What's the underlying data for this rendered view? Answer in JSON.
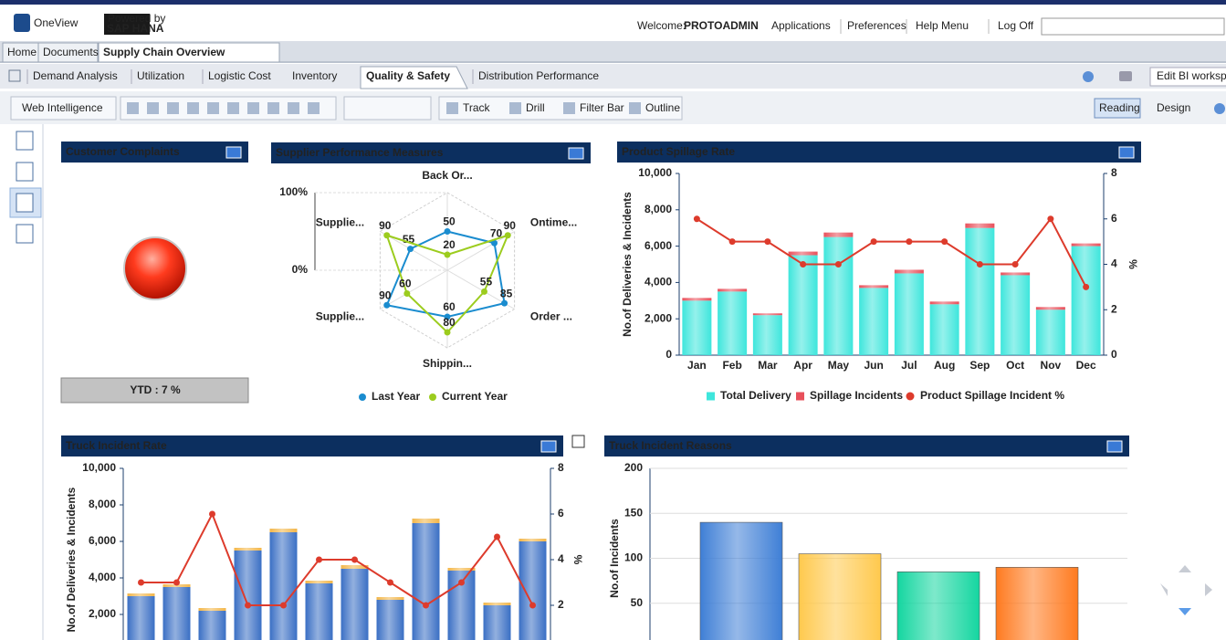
{
  "header": {
    "logo": "OneView",
    "powered_by": "Powered by",
    "sap": "SAP HANA",
    "welcome": "Welcome:",
    "user": "PROTOADMIN",
    "menu": [
      "Applications",
      "Preferences",
      "Help Menu",
      "Log Off"
    ]
  },
  "doc_tabs": [
    "Home",
    "Documents",
    "Supply Chain Overview"
  ],
  "report_tabs": [
    "Demand Analysis",
    "Utilization",
    "Logistic Cost",
    "Inventory",
    "Quality & Safety",
    "Distribution Performance"
  ],
  "edit_workspace": "Edit BI workspac",
  "toolbar": {
    "app": "Web Intelligence",
    "buttons": [
      "Track",
      "Drill",
      "Filter Bar",
      "Outline"
    ],
    "modes": [
      "Reading",
      "Design"
    ]
  },
  "complaints": {
    "title": "Customer Complaints",
    "ytd": "YTD : 7 %"
  },
  "chart_data": [
    {
      "type": "radar",
      "title": "Supplier Performance Measures",
      "categories": [
        "Back Or...",
        "Ontime...",
        "Order ...",
        "Shippin...",
        "Supplie...",
        "Supplie..."
      ],
      "series": [
        {
          "name": "Last Year",
          "color": "#1a8ccf",
          "values": [
            50,
            70,
            85,
            60,
            90,
            55
          ]
        },
        {
          "name": "Current Year",
          "color": "#9ccc1e",
          "values": [
            20,
            90,
            55,
            80,
            60,
            90
          ]
        }
      ],
      "ylim": [
        0,
        100
      ],
      "yticks": [
        {
          "value": 0,
          "label": "0%"
        },
        {
          "value": 100,
          "label": "100%"
        }
      ],
      "legend": "bottom"
    },
    {
      "type": "combo",
      "title": "Product Spillage Rate",
      "y_label": "No.of Deliveries & Incidents",
      "y2_label": "%",
      "categories": [
        "Jan",
        "Feb",
        "Mar",
        "Apr",
        "May",
        "Jun",
        "Jul",
        "Aug",
        "Sep",
        "Oct",
        "Nov",
        "Dec"
      ],
      "series": [
        {
          "name": "Total Delivery",
          "color": "#3ee6dc",
          "values": [
            3000,
            3500,
            2200,
            5500,
            6500,
            3700,
            4500,
            2800,
            7000,
            4400,
            2500,
            6000
          ]
        },
        {
          "name": "Spillage Incidents",
          "color": "#e8505b",
          "values": [
            150,
            150,
            100,
            200,
            250,
            150,
            200,
            150,
            250,
            150,
            150,
            150
          ]
        },
        {
          "name": "Product Spillage Incident %",
          "color": "#dd3b2c",
          "axis": "y2",
          "values": [
            6,
            5,
            5,
            4,
            4,
            5,
            5,
            5,
            4,
            4,
            6,
            3
          ]
        }
      ],
      "stacked": true,
      "ylim": [
        0,
        10000
      ],
      "yticks": [
        0,
        {
          "value": 2000,
          "label": "2,000"
        },
        {
          "value": 4000,
          "label": "4,000"
        },
        {
          "value": 6000,
          "label": "6,000"
        },
        {
          "value": 8000,
          "label": "8,000"
        },
        {
          "value": 10000,
          "label": "10,000"
        }
      ],
      "y2lim": [
        0,
        8
      ],
      "y2ticks": [
        0,
        2,
        4,
        6,
        8
      ],
      "legend": "bottom"
    },
    {
      "type": "combo",
      "title": "Truck Incident Rate",
      "y_label": "No.of Deliveries & Incidents",
      "y2_label": "%",
      "categories": [
        null,
        null,
        null,
        null,
        null,
        null,
        null,
        null,
        null,
        null,
        null,
        null
      ],
      "series": [
        {
          "color": "#3a6fc4",
          "values": [
            3000,
            3500,
            2200,
            5500,
            6500,
            3700,
            4500,
            2800,
            7000,
            4400,
            2500,
            6000
          ]
        },
        {
          "color": "#f2b64a",
          "values": [
            150,
            150,
            150,
            150,
            200,
            150,
            200,
            150,
            250,
            150,
            150,
            150
          ]
        },
        {
          "color": "#dd3b2c",
          "axis": "y2",
          "values": [
            3,
            3,
            6,
            2,
            2,
            4,
            4,
            3,
            2,
            3,
            5,
            2
          ]
        }
      ],
      "stacked": true,
      "ylim": [
        0,
        10000
      ],
      "yticks": [
        {
          "value": 2000,
          "label": "2,000"
        },
        {
          "value": 4000,
          "label": "4,000"
        },
        {
          "value": 6000,
          "label": "6,000"
        },
        {
          "value": 8000,
          "label": "8,000"
        },
        {
          "value": 10000,
          "label": "10,000"
        }
      ],
      "y2lim": [
        0,
        8
      ],
      "y2ticks": [
        2,
        4,
        6,
        8
      ]
    },
    {
      "type": "bar",
      "title": "Truck Incident Reasons",
      "y_label": "No.of Incidents",
      "categories": [
        null,
        null,
        null,
        null
      ],
      "values": [
        140,
        105,
        85,
        90
      ],
      "colors": [
        "#3f7fd6",
        "#ffc94d",
        "#14d6a0",
        "#ff7a1f"
      ],
      "ylim": [
        0,
        200
      ],
      "yticks": [
        50,
        100,
        150,
        200
      ],
      "grid": true
    }
  ]
}
